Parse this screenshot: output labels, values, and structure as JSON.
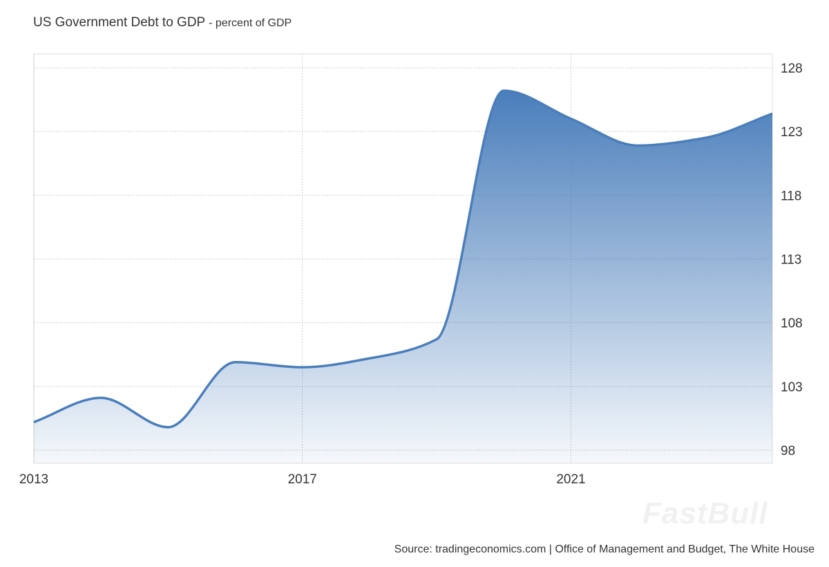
{
  "chart_data": {
    "type": "area",
    "title": "US Government Debt to GDP",
    "subtitle": "- percent of GDP",
    "x": [
      2013,
      2014,
      2015,
      2016,
      2017,
      2018,
      2019,
      2020,
      2021,
      2022,
      2023,
      2024
    ],
    "values": [
      100.2,
      102.1,
      99.8,
      104.9,
      104.5,
      105.2,
      106.7,
      126.2,
      124.0,
      121.9,
      122.5,
      124.4
    ],
    "xlim": [
      2013,
      2024
    ],
    "ylim": [
      97.5,
      128.5
    ],
    "x_ticks": [
      "2013",
      "2017",
      "2021"
    ],
    "y_ticks": [
      "98",
      "103",
      "108",
      "113",
      "118",
      "123",
      "128"
    ],
    "y_axis_side": "right",
    "grid": true,
    "color": "#4a7ebb",
    "source": "Source: tradingeconomics.com | Office of Management and Budget, The White House",
    "watermark": "FastBull"
  }
}
